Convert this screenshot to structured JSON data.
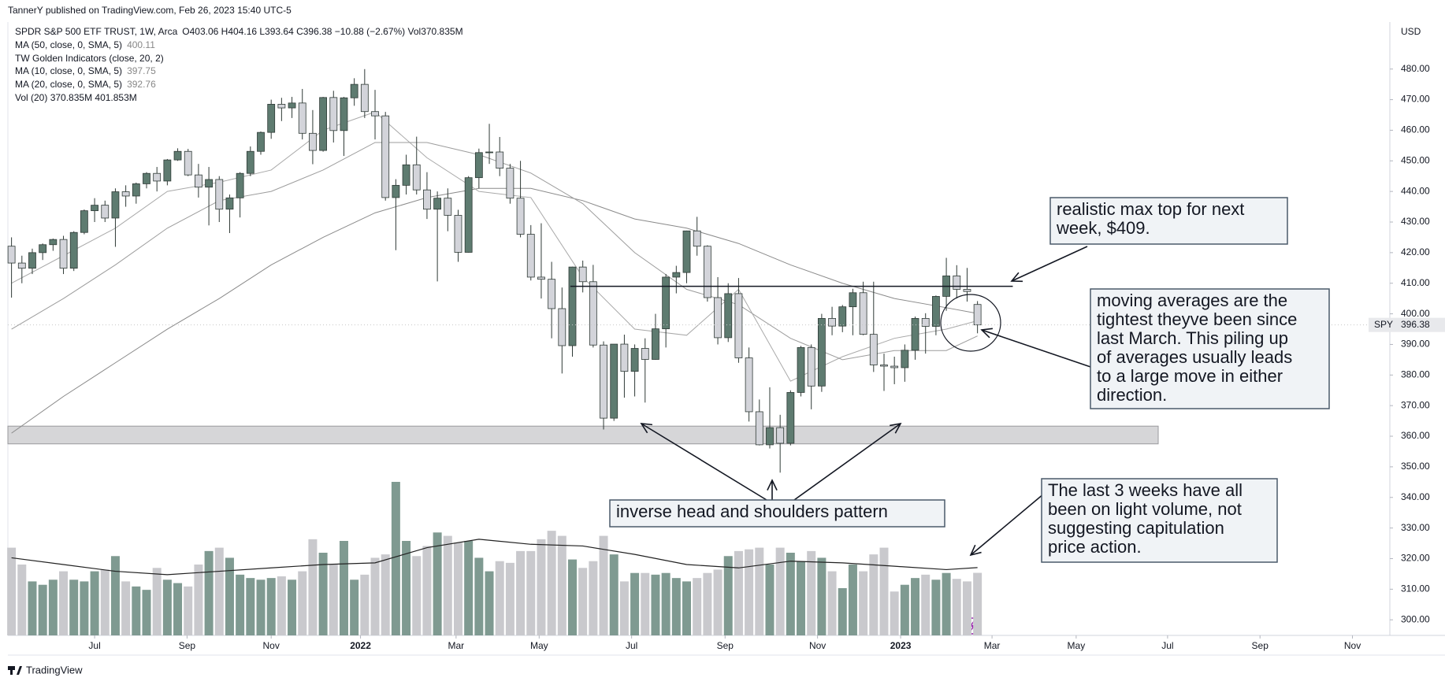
{
  "header": "TannerY published on TradingView.com, Feb 26, 2023 15:40 UTC-5",
  "footer": "TradingView",
  "chart_data": {
    "type": "candlestick",
    "title": "SPDR S&P 500 ETF TRUST, 1W, Arca",
    "quote": "O403.06 H404.16 L393.64 C396.38 −10.88 (−2.67%) Vol370.835M",
    "indicator_labels": [
      "TW Golden Indicators (close, 20, 2)",
      "Vol (20)  370.835M  401.853M"
    ],
    "currency": "USD",
    "symbol": "SPY",
    "up_color": "#5e7b70",
    "down_color": "#d3d4da",
    "candles": {
      "open": [
        422.1,
        416.6,
        414.9,
        420.0,
        422.6,
        424.3,
        414.9,
        426.6,
        433.7,
        435.5,
        431.3,
        439.9,
        438.5,
        442.5,
        445.9,
        443.4,
        450.3,
        453.1,
        445.4,
        441.4,
        443.9,
        434.2,
        437.9,
        445.9,
        453.1,
        459.3,
        468.5,
        467.3,
        468.9,
        459.0,
        453.4,
        470.7,
        459.9,
        470.6,
        475.0,
        466.1,
        464.7,
        438.0,
        442.0,
        448.7,
        440.5,
        434.2,
        437.8,
        432.2,
        420.1,
        444.5,
        452.7,
        452.9,
        447.6,
        437.8,
        426.0,
        412.0,
        411.3,
        401.7,
        389.6,
        415.3,
        410.5,
        389.8,
        365.9,
        390.1,
        381.2,
        388.7,
        385.1,
        395.1,
        412.0,
        413.5,
        427.1,
        422.1,
        405.3,
        392.2,
        406.6,
        385.6,
        368.0,
        357.2,
        362.8,
        357.7,
        374.3,
        389.0,
        376.4,
        398.5,
        396.0,
        402.3,
        406.9,
        393.3,
        383.3,
        382.9,
        382.4,
        388.1,
        398.5,
        395.9,
        405.7,
        412.4,
        408.0,
        403.06
      ],
      "high": [
        425.0,
        419.0,
        421.3,
        423.0,
        424.6,
        425.5,
        427.0,
        434.1,
        437.8,
        437.0,
        441.0,
        442.0,
        442.9,
        446.3,
        448.0,
        450.6,
        454.1,
        453.9,
        449.0,
        448.0,
        445.0,
        439.0,
        446.3,
        454.7,
        459.6,
        470.0,
        470.6,
        470.9,
        473.5,
        466.6,
        470.9,
        472.9,
        470.9,
        477.0,
        479.98,
        473.2,
        466.0,
        444.0,
        452.0,
        457.9,
        446.3,
        440.0,
        441.0,
        434.0,
        445.0,
        454.0,
        462.1,
        457.8,
        449.0,
        450.0,
        429.0,
        429.6,
        417.0,
        408.6,
        415.4,
        417.4,
        416.0,
        391.0,
        390.1,
        393.2,
        390.0,
        392.0,
        400.0,
        413.0,
        415.7,
        427.2,
        431.7,
        422.4,
        412.0,
        410.0,
        411.7,
        389.0,
        372.0,
        376.0,
        367.0,
        375.0,
        389.5,
        390.0,
        400.0,
        402.3,
        402.9,
        408.2,
        410.5,
        410.5,
        387.0,
        386.0,
        390.0,
        399.1,
        400.2,
        406.0,
        418.3,
        415.9,
        415.0,
        404.16
      ],
      "low": [
        405.3,
        410.0,
        413.0,
        417.6,
        420.6,
        413.0,
        414.0,
        426.0,
        430.0,
        430.0,
        421.9,
        435.0,
        436.0,
        441.0,
        440.0,
        442.0,
        450.0,
        445.0,
        438.0,
        428.9,
        430.0,
        426.4,
        431.5,
        445.0,
        452.0,
        457.2,
        463.0,
        464.0,
        457.0,
        448.9,
        453.0,
        456.0,
        451.6,
        468.0,
        464.0,
        457.0,
        437.0,
        420.8,
        439.0,
        439.0,
        431.0,
        410.6,
        427.0,
        417.0,
        420.0,
        441.0,
        449.0,
        445.0,
        436.0,
        425.0,
        410.9,
        405.0,
        392.0,
        380.5,
        386.0,
        407.0,
        389.0,
        362.2,
        365.0,
        372.6,
        373.0,
        371.0,
        385.0,
        389.0,
        406.7,
        410.0,
        419.0,
        404.0,
        390.0,
        390.8,
        384.0,
        364.8,
        357.0,
        356.0,
        348.1,
        357.0,
        373.0,
        368.8,
        374.5,
        393.0,
        394.0,
        393.0,
        393.0,
        381.0,
        374.8,
        377.0,
        377.8,
        385.0,
        387.0,
        393.0,
        401.0,
        405.0,
        404.0,
        393.64
      ],
      "close": [
        416.6,
        414.9,
        420.0,
        422.6,
        424.3,
        414.9,
        426.6,
        433.7,
        435.5,
        431.3,
        439.9,
        438.5,
        442.5,
        445.9,
        443.4,
        450.3,
        453.1,
        445.4,
        441.4,
        443.9,
        434.2,
        437.9,
        445.9,
        453.1,
        459.3,
        468.5,
        467.3,
        468.9,
        459.0,
        453.4,
        470.7,
        459.9,
        470.6,
        475.0,
        466.1,
        464.7,
        438.0,
        442.0,
        448.7,
        440.5,
        434.2,
        437.8,
        432.2,
        420.1,
        444.5,
        452.7,
        452.9,
        447.6,
        437.8,
        426.0,
        412.0,
        411.3,
        401.7,
        389.6,
        415.3,
        410.5,
        389.8,
        365.9,
        390.1,
        381.2,
        388.7,
        385.1,
        395.1,
        412.0,
        413.5,
        427.1,
        422.1,
        405.3,
        392.2,
        406.6,
        385.6,
        368.0,
        357.2,
        362.8,
        357.7,
        374.3,
        389.0,
        376.4,
        398.5,
        396.0,
        402.3,
        406.9,
        393.3,
        383.3,
        382.9,
        382.4,
        388.1,
        398.5,
        395.9,
        405.7,
        412.4,
        408.0,
        407.3,
        396.38
      ]
    },
    "volume": {
      "vlim": [
        0,
        1400
      ],
      "values": [
        520,
        420,
        320,
        300,
        330,
        380,
        330,
        320,
        380,
        390,
        470,
        320,
        290,
        270,
        400,
        330,
        310,
        290,
        420,
        500,
        520,
        460,
        360,
        340,
        330,
        340,
        350,
        330,
        380,
        570,
        490,
        420,
        560,
        330,
        360,
        460,
        480,
        910,
        560,
        470,
        530,
        610,
        590,
        550,
        560,
        460,
        380,
        440,
        430,
        500,
        500,
        570,
        620,
        590,
        450,
        400,
        440,
        590,
        480,
        320,
        370,
        370,
        360,
        370,
        340,
        320,
        340,
        370,
        390,
        470,
        500,
        510,
        520,
        420,
        520,
        490,
        440,
        500,
        460,
        380,
        280,
        420,
        380,
        480,
        520,
        260,
        300,
        340,
        360,
        330,
        370,
        335,
        320,
        370.835
      ]
    },
    "series": [
      {
        "name": "MA (50, close, 0, SMA, 5)",
        "color": "#8a8a8a",
        "x": [
          0,
          5,
          10,
          15,
          20,
          25,
          30,
          35,
          40,
          45,
          50,
          55,
          60,
          65,
          70,
          75,
          80,
          85,
          90,
          93
        ],
        "values": [
          361,
          373,
          384,
          395,
          405,
          416,
          425,
          433,
          438,
          441,
          441,
          437,
          431,
          428,
          423,
          416,
          410,
          405,
          402,
          400.11
        ]
      },
      {
        "name": "MA (10, close, 0, SMA, 5)",
        "color": "#a9a9a9",
        "x": [
          0,
          5,
          10,
          15,
          20,
          25,
          30,
          35,
          40,
          45,
          50,
          55,
          60,
          65,
          70,
          75,
          80,
          85,
          90,
          93
        ],
        "values": [
          410,
          419,
          428,
          440,
          443,
          447,
          460,
          466,
          451,
          440,
          438,
          412,
          395,
          393,
          408,
          378,
          386,
          392,
          395,
          397.75
        ]
      },
      {
        "name": "MA (20, close, 0, SMA, 5)",
        "color": "#9c9c9c",
        "x": [
          0,
          5,
          10,
          15,
          20,
          25,
          30,
          35,
          40,
          45,
          50,
          55,
          60,
          65,
          70,
          75,
          80,
          85,
          90,
          93
        ],
        "values": [
          395,
          405,
          416,
          428,
          437,
          440,
          447,
          456,
          456,
          452,
          446,
          436,
          420,
          408,
          403,
          392,
          385,
          388,
          388,
          392.76
        ]
      },
      {
        "name": "Vol (20)",
        "color": "#222222",
        "axis": "volume",
        "x": [
          0,
          5,
          10,
          15,
          20,
          25,
          30,
          35,
          40,
          45,
          50,
          55,
          60,
          65,
          70,
          75,
          80,
          85,
          90,
          93
        ],
        "values": [
          460,
          420,
          380,
          360,
          380,
          400,
          420,
          430,
          520,
          570,
          540,
          530,
          480,
          420,
          400,
          440,
          430,
          410,
          390,
          401.853
        ]
      }
    ],
    "xlim": [
      -0.35,
      132.7
    ],
    "xticks": [
      {
        "value": 8.0,
        "label": "Jul"
      },
      {
        "value": 16.9,
        "label": "Sep"
      },
      {
        "value": 25.0,
        "label": "Nov"
      },
      {
        "value": 33.6,
        "label": "2022"
      },
      {
        "value": 42.8,
        "label": "Mar"
      },
      {
        "value": 50.8,
        "label": "May"
      },
      {
        "value": 59.7,
        "label": "Jul"
      },
      {
        "value": 68.7,
        "label": "Sep"
      },
      {
        "value": 77.6,
        "label": "Nov"
      },
      {
        "value": 85.6,
        "label": "2023"
      },
      {
        "value": 94.4,
        "label": "Mar"
      },
      {
        "value": 102.5,
        "label": "May"
      },
      {
        "value": 111.3,
        "label": "Jul"
      },
      {
        "value": 120.2,
        "label": "Sep"
      },
      {
        "value": 129.1,
        "label": "Nov"
      }
    ],
    "ylim": [
      300,
      480
    ],
    "yticks": [
      {
        "value": 300,
        "label": "300.00"
      },
      {
        "value": 310,
        "label": "310.00"
      },
      {
        "value": 320,
        "label": "320.00"
      },
      {
        "value": 330,
        "label": "330.00"
      },
      {
        "value": 340,
        "label": "340.00"
      },
      {
        "value": 350,
        "label": "350.00"
      },
      {
        "value": 360,
        "label": "360.00"
      },
      {
        "value": 370,
        "label": "370.00"
      },
      {
        "value": 380,
        "label": "380.00"
      },
      {
        "value": 390,
        "label": "390.00"
      },
      {
        "value": 400,
        "label": "400.00"
      },
      {
        "value": 410,
        "label": "410.00"
      },
      {
        "value": 420,
        "label": "420.00"
      },
      {
        "value": 430,
        "label": "430.00"
      },
      {
        "value": 440,
        "label": "440.00"
      },
      {
        "value": 450,
        "label": "450.00"
      },
      {
        "value": 460,
        "label": "460.00"
      },
      {
        "value": 470,
        "label": "470.00"
      },
      {
        "value": 480,
        "label": "480.00"
      }
    ],
    "grid": false,
    "hline": {
      "value": 409,
      "x": [
        53.8,
        96.4
      ]
    },
    "zone": {
      "range": [
        357.5,
        363.3
      ],
      "x": [
        -0.35,
        110.4
      ]
    },
    "notes": [
      {
        "lines": [
          "realistic max top for next",
          "week, $409."
        ]
      },
      {
        "lines": [
          "moving averages are the",
          "tightest theyve been since",
          "last March. This piling up",
          "of averages usually leads",
          "to a large move in either",
          "direction."
        ]
      },
      {
        "lines": [
          "inverse head and shoulders pattern"
        ]
      },
      {
        "lines": [
          "The last 3 weeks have all",
          "been on light volume, not",
          "suggesting capitulation",
          "price action."
        ]
      }
    ]
  }
}
